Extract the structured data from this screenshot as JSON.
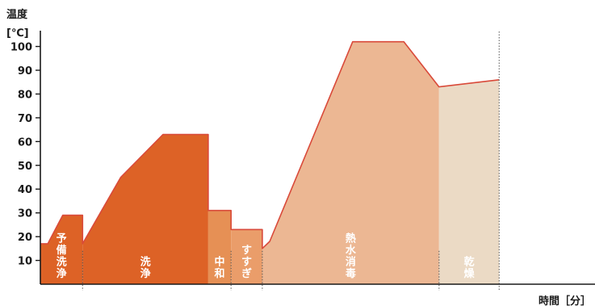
{
  "chart_data": {
    "type": "area",
    "ylabel_line1": "温度",
    "ylabel_line2": "[℃]",
    "xlabel": "時間［分］",
    "ylim": [
      0,
      108
    ],
    "yticks": [
      10,
      20,
      30,
      40,
      50,
      60,
      70,
      80,
      90,
      100
    ],
    "x_unit_note": "x values are relative time in minutes (axis has no numeric ticks)",
    "xlim": [
      0,
      100
    ],
    "phases": [
      {
        "name": "予備洗浄",
        "color": "#dd6226",
        "points": [
          [
            0,
            17
          ],
          [
            1.5,
            17
          ],
          [
            4.5,
            29
          ],
          [
            8.5,
            29
          ],
          [
            8.5,
            17
          ]
        ],
        "x_end": 8.5
      },
      {
        "name": "洗浄",
        "color": "#dd6226",
        "points": [
          [
            8.5,
            17
          ],
          [
            16.2,
            45
          ],
          [
            24.7,
            63
          ],
          [
            33.8,
            63
          ]
        ],
        "x_end": 33.8
      },
      {
        "name": "中和",
        "color": "#e69055",
        "points": [
          [
            33.8,
            31
          ],
          [
            38.4,
            31
          ]
        ],
        "x_end": 38.4
      },
      {
        "name": "すすぎ",
        "color": "#ea9d6a",
        "points": [
          [
            38.4,
            23
          ],
          [
            44.7,
            23
          ],
          [
            44.7,
            15
          ]
        ],
        "x_end": 44.7
      },
      {
        "name": "熱水消毒",
        "color": "#ecb793",
        "points": [
          [
            44.7,
            15
          ],
          [
            46.2,
            18
          ],
          [
            62.9,
            102
          ],
          [
            73.2,
            102
          ],
          [
            80.3,
            83
          ]
        ],
        "x_end": 80.3
      },
      {
        "name": "乾燥",
        "color": "#ebdac5",
        "points": [
          [
            80.3,
            83
          ],
          [
            92.4,
            86
          ]
        ],
        "x_end": 92.4
      }
    ],
    "line_color": "#d94a3a",
    "grid": false
  }
}
